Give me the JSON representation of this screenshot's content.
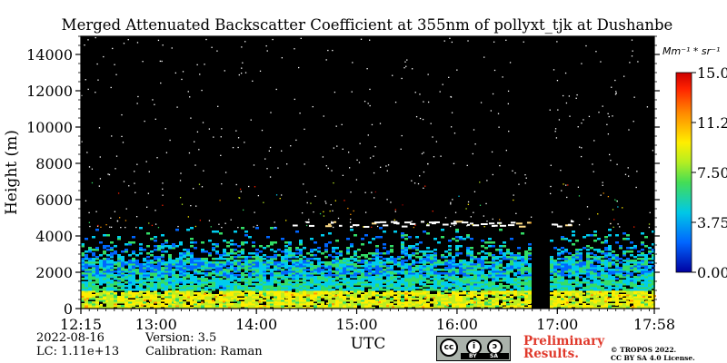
{
  "chart_data": {
    "type": "heatmap",
    "title": "Merged Attenuated Backscatter Coefficient at 355nm of pollyxt_tjk at Dushanbe",
    "xlabel": "UTC",
    "ylabel": "Height (m)",
    "x_ticks": [
      "12:15",
      "13:00",
      "14:00",
      "15:00",
      "16:00",
      "17:00",
      "17:58"
    ],
    "x_range": [
      "12:15",
      "17:58"
    ],
    "y_ticks": [
      0,
      2000,
      4000,
      6000,
      8000,
      10000,
      12000,
      14000
    ],
    "y_range": [
      0,
      15000
    ],
    "colorbar": {
      "unit": "Mm⁻¹ * sr⁻¹",
      "range": [
        0.0,
        15.0
      ],
      "tick_labels": [
        "15.00",
        "11.25",
        "7.50",
        "3.75",
        "0.00"
      ],
      "colormap": [
        "#000080",
        "#0066ff",
        "#00ccee",
        "#33dd66",
        "#bbee22",
        "#ffee00",
        "#ff9900",
        "#ff2200",
        "#990000"
      ]
    },
    "structure": {
      "aerosol_layer_top_m": 2500,
      "scattered_aerosol_top_m": 4500,
      "cloud_layer_height_m": 4700,
      "cloud_layer_time_range": [
        "14:20",
        "17:10"
      ],
      "sparse_signal_upper_height_m": 7000,
      "no_data_gap": [
        "16:45",
        "16:55"
      ],
      "background_color": "#000000"
    }
  },
  "footer": {
    "date": "2022-08-16",
    "lc": "LC: 1.11e+13",
    "version": "Version: 3.5",
    "calibration": "Calibration: Raman",
    "cc_label": "cc",
    "cc_by": "BY",
    "cc_sa": "SA",
    "preliminary_line1": "Preliminary",
    "preliminary_line2": "Results.",
    "copyright_line1": "© TROPOS 2022.",
    "copyright_line2": "CC BY SA 4.0 License."
  }
}
